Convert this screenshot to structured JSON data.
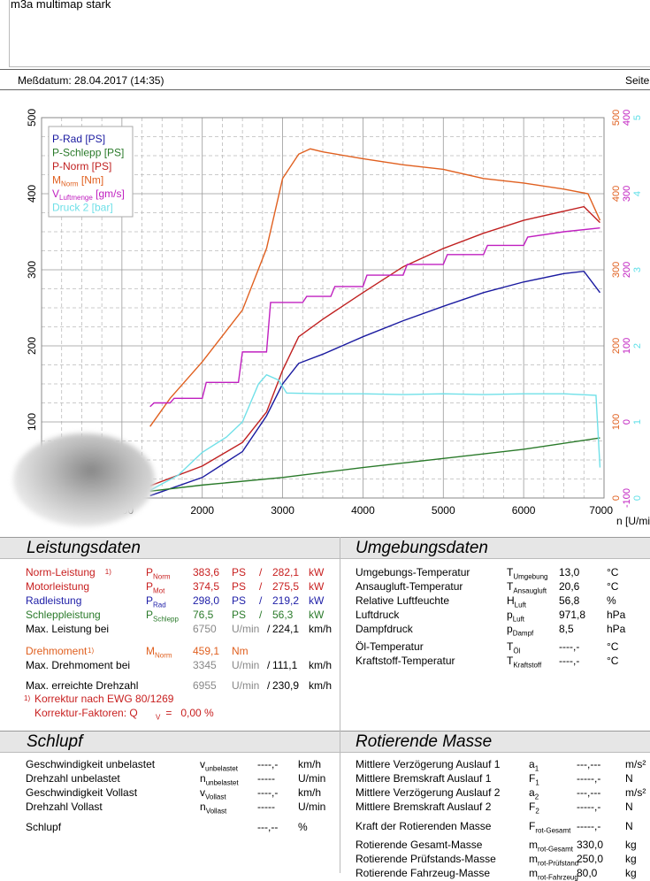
{
  "header": {
    "title": "m3a multimap stark",
    "date": "Meßdatum: 28.04.2017 (14:35)",
    "page": "Seite"
  },
  "chart_data": {
    "type": "line",
    "xlabel": "n [U/min]",
    "xlim": [
      0,
      7000
    ],
    "xticks": [
      1000,
      2000,
      3000,
      4000,
      5000,
      6000,
      7000
    ],
    "ylim": [
      0,
      500
    ],
    "yticks_left": [
      "100",
      "200",
      "300",
      "400",
      "500"
    ],
    "right_axes": [
      {
        "name": "Nm",
        "color": "#e06020",
        "ticks": [
          "0",
          "100",
          "200",
          "300",
          "400",
          "500"
        ]
      },
      {
        "name": "g/s",
        "color": "#c020c0",
        "ticks": [
          "-100",
          "0",
          "100",
          "200",
          "300",
          "400"
        ]
      },
      {
        "name": "bar",
        "color": "#60e0e8",
        "ticks": [
          "0",
          "1",
          "2",
          "3",
          "4",
          "5"
        ]
      }
    ],
    "grid": true,
    "legend_placement": "top-left",
    "legend": [
      {
        "label": "P-Rad [PS]",
        "color": "#1a1aa0"
      },
      {
        "label": "P-Schlepp [PS]",
        "color": "#2a7a2a"
      },
      {
        "label": "P-Norm [PS]",
        "color": "#c02020"
      },
      {
        "label": "M",
        "sub": "Norm",
        "rest": " [Nm]",
        "color": "#e06020"
      },
      {
        "label": "V",
        "sub": "Luftmenge",
        "rest": " [gm/s]",
        "color": "#c020c0"
      },
      {
        "label": "Druck 2 [bar]",
        "color": "#70e0e8"
      }
    ],
    "series": [
      {
        "name": "P-Rad [PS]",
        "unit": "PS",
        "color": "#1a1aa0",
        "x": [
          1350,
          2000,
          2500,
          2800,
          3000,
          3200,
          3500,
          4000,
          4500,
          5000,
          5500,
          6000,
          6500,
          6750,
          6950
        ],
        "y": [
          3,
          27,
          61,
          108,
          150,
          177,
          189,
          212,
          233,
          252,
          270,
          284,
          295,
          298,
          270
        ]
      },
      {
        "name": "P-Schlepp [PS]",
        "unit": "PS",
        "color": "#2a7a2a",
        "x": [
          1350,
          2000,
          3000,
          4000,
          5000,
          6000,
          6950
        ],
        "y": [
          9,
          17,
          27,
          40,
          52,
          64,
          79
        ]
      },
      {
        "name": "P-Norm [PS]",
        "unit": "PS",
        "color": "#c02020",
        "x": [
          1350,
          2000,
          2500,
          2800,
          3000,
          3200,
          3500,
          4000,
          4500,
          5000,
          5500,
          6000,
          6500,
          6750,
          6950
        ],
        "y": [
          16,
          42,
          73,
          113,
          168,
          212,
          235,
          270,
          304,
          328,
          348,
          365,
          377,
          383,
          362
        ]
      },
      {
        "name": "M Norm [Nm]",
        "unit": "Nm",
        "color": "#e06020",
        "x": [
          1350,
          1600,
          2000,
          2500,
          2800,
          3000,
          3200,
          3345,
          3500,
          4000,
          4500,
          5000,
          5500,
          6000,
          6500,
          6800,
          6950
        ],
        "y": [
          94,
          131,
          179,
          247,
          328,
          420,
          452,
          459,
          455,
          446,
          438,
          432,
          420,
          414,
          406,
          400,
          365
        ]
      },
      {
        "name": "V Luftmenge [gm/s]",
        "unit": "g/s",
        "color": "#c020c0",
        "x": [
          1350,
          1400,
          1600,
          1650,
          2000,
          2050,
          2450,
          2500,
          2800,
          2850,
          3250,
          3300,
          3600,
          3650,
          4000,
          4050,
          4500,
          4550,
          5000,
          5050,
          5500,
          5550,
          6000,
          6050,
          6500,
          6950
        ],
        "y": [
          20,
          25,
          25,
          31,
          31,
          52,
          52,
          92,
          92,
          157,
          157,
          165,
          165,
          178,
          178,
          193,
          193,
          207,
          207,
          220,
          220,
          232,
          232,
          243,
          250,
          255
        ]
      },
      {
        "name": "Druck 2 [bar]",
        "unit": "bar",
        "color": "#70e0e8",
        "x": [
          1350,
          1700,
          2000,
          2300,
          2500,
          2700,
          2800,
          2950,
          3050,
          3500,
          4000,
          4500,
          5000,
          5500,
          6000,
          6500,
          6900,
          6950
        ],
        "y": [
          0.1,
          0.3,
          0.6,
          0.8,
          1.0,
          1.5,
          1.62,
          1.55,
          1.38,
          1.37,
          1.37,
          1.36,
          1.37,
          1.36,
          1.37,
          1.37,
          1.35,
          0.4
        ]
      }
    ]
  },
  "leistung": {
    "title": "Leistungsdaten",
    "rows": [
      {
        "label": "Norm-Leistung",
        "mark": "1)",
        "sym": "P",
        "sub": "Norm",
        "v1": "383,6",
        "u1": "PS",
        "sep": "/",
        "v2": "282,1",
        "u2": "kW",
        "color": "#c82020"
      },
      {
        "label": "Motorleistung",
        "mark": "",
        "sym": "P",
        "sub": "Mot",
        "v1": "374,5",
        "u1": "PS",
        "sep": "/",
        "v2": "275,5",
        "u2": "kW",
        "color": "#c82020"
      },
      {
        "label": "Radleistung",
        "mark": "",
        "sym": "P",
        "sub": "Rad",
        "v1": "298,0",
        "u1": "PS",
        "sep": "/",
        "v2": "219,2",
        "u2": "kW",
        "color": "#2020a8"
      },
      {
        "label": "Schleppleistung",
        "mark": "",
        "sym": "P",
        "sub": "Schlepp",
        "v1": "76,5",
        "u1": "PS",
        "sep": "/",
        "v2": "56,3",
        "u2": "kW",
        "color": "#2a7a2a"
      },
      {
        "label": "Max. Leistung bei",
        "mark": "",
        "sym": "",
        "sub": "",
        "v1": "6750",
        "u1": "U/min",
        "sep": "/",
        "v2": "224,1",
        "u2": "km/h",
        "color": "#000"
      },
      {
        "label": "Drehmoment",
        "mark": "1)",
        "sym": "M",
        "sub": "Norm",
        "v1": "459,1",
        "u1": "Nm",
        "sep": "",
        "v2": "",
        "u2": "",
        "color": "#e06020"
      },
      {
        "label": "Max. Drehmoment bei",
        "mark": "",
        "sym": "",
        "sub": "",
        "v1": "3345",
        "u1": "U/min",
        "sep": "/",
        "v2": "111,1",
        "u2": "km/h",
        "color": "#000"
      },
      {
        "label": "Max. erreichte Drehzahl",
        "mark": "",
        "sym": "",
        "sub": "",
        "v1": "6955",
        "u1": "U/min",
        "sep": "/",
        "v2": "230,9",
        "u2": "km/h",
        "color": "#000"
      }
    ],
    "note_mark": "1)",
    "note1": "Korrektur nach EWG 80/1269",
    "note2": "Korrektur-Faktoren: Q",
    "note2_sub": "V",
    "note2_val": " =   0,00 %"
  },
  "umgebung": {
    "title": "Umgebungsdaten",
    "rows": [
      {
        "label": "Umgebungs-Temperatur",
        "sym": "T",
        "sub": "Umgebung",
        "v": "13,0",
        "u": "°C"
      },
      {
        "label": "Ansaugluft-Temperatur",
        "sym": "T",
        "sub": "Ansaugluft",
        "v": "20,6",
        "u": "°C"
      },
      {
        "label": "Relative Luftfeuchte",
        "sym": "H",
        "sub": "Luft",
        "v": "56,8",
        "u": "%"
      },
      {
        "label": "Luftdruck",
        "sym": "p",
        "sub": "Luft",
        "v": "971,8",
        "u": "hPa"
      },
      {
        "label": "Dampfdruck",
        "sym": "p",
        "sub": "Dampf",
        "v": "8,5",
        "u": "hPa"
      },
      {
        "label": "Öl-Temperatur",
        "sym": "T",
        "sub": "Öl",
        "v": "----,-",
        "u": "°C"
      },
      {
        "label": "Kraftstoff-Temperatur",
        "sym": "T",
        "sub": "Kraftstoff",
        "v": "----,-",
        "u": "°C"
      }
    ]
  },
  "schlupf": {
    "title": "Schlupf",
    "rows": [
      {
        "label": "Geschwindigkeit unbelastet",
        "sym": "v",
        "sub": "unbelastet",
        "v": "----,-",
        "u": "km/h"
      },
      {
        "label": "Drehzahl unbelastet",
        "sym": "n",
        "sub": "unbelastet",
        "v": "-----",
        "u": "U/min"
      },
      {
        "label": "Geschwindigkeit Vollast",
        "sym": "v",
        "sub": "Vollast",
        "v": "----,-",
        "u": "km/h"
      },
      {
        "label": "Drehzahl Vollast",
        "sym": "n",
        "sub": "Vollast",
        "v": "-----",
        "u": "U/min"
      },
      {
        "label": "Schlupf",
        "sym": "",
        "sub": "",
        "v": "---,--",
        "u": "%"
      }
    ]
  },
  "rotierend": {
    "title": "Rotierende Masse",
    "rows": [
      {
        "label": "Mittlere Verzögerung Auslauf 1",
        "sym": "a",
        "sub": "1",
        "v": "---,---",
        "u": "m/s²"
      },
      {
        "label": "Mittlere Bremskraft Auslauf 1",
        "sym": "F",
        "sub": "1",
        "v": "-----,-",
        "u": "N"
      },
      {
        "label": "Mittlere Verzögerung Auslauf 2",
        "sym": "a",
        "sub": "2",
        "v": "---,---",
        "u": "m/s²"
      },
      {
        "label": "Mittlere Bremskraft Auslauf 2",
        "sym": "F",
        "sub": "2",
        "v": "-----,-",
        "u": "N"
      },
      {
        "label": "Kraft der Rotierenden Masse",
        "sym": "F",
        "sub": "rot-Gesamt",
        "v": "-----,-",
        "u": "N"
      },
      {
        "label": "Rotierende Gesamt-Masse",
        "sym": "m",
        "sub": "rot-Gesamt",
        "v": "330,0",
        "u": "kg"
      },
      {
        "label": "Rotierende Prüfstands-Masse",
        "sym": "m",
        "sub": "rot-Prüfstand",
        "v": "250,0",
        "u": "kg"
      },
      {
        "label": "Rotierende Fahrzeug-Masse",
        "sym": "m",
        "sub": "rot-Fahrzeug",
        "v": "80,0",
        "u": "kg"
      }
    ]
  }
}
